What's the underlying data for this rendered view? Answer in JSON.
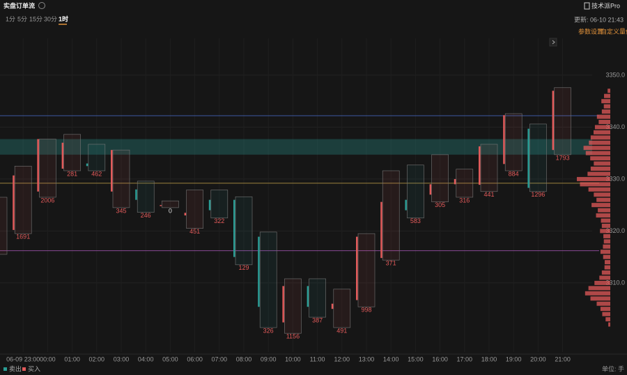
{
  "title": "实盘订单流",
  "tabs": [
    "1分",
    "5分",
    "15分",
    "30分",
    "1时"
  ],
  "active_tab": 4,
  "pro_button": "技术派Pro",
  "updated": "更新: 06-10 21:43",
  "links": [
    "参数设置",
    "自定义量价"
  ],
  "unit": "单位: 手",
  "chart_data": {
    "type": "candlestick",
    "categories": [
      null,
      "06-09 23:00",
      "00:00",
      "01:00",
      "02:00",
      "03:00",
      "04:00",
      "05:00",
      "06:00",
      "07:00",
      "08:00",
      "09:00",
      "10:00",
      "11:00",
      "12:00",
      "13:00",
      "14:00",
      "15:00",
      "16:00",
      "17:00",
      "18:00",
      "19:00",
      "20:00",
      "21:00"
    ],
    "open": [
      3318,
      3320.2,
      3327.6,
      3332,
      3333,
      3327.6,
      3328,
      3325,
      3323,
      3326,
      3326,
      3318.9,
      3302.4,
      3309.4,
      3305,
      3306.7,
      3314.8,
      3326,
      3327,
      3329,
      3328.9,
      3332.9,
      3339.7,
      3335.6
    ],
    "high": [
      3326.5,
      3332.5,
      3337.7,
      3338.6,
      3336.7,
      3335.6,
      3329.6,
      3325.8,
      3327.9,
      3327.9,
      3326.6,
      3319.8,
      3310.8,
      3310.8,
      3308.8,
      3319.5,
      3331.6,
      3332.7,
      3334.7,
      3331.9,
      3336.7,
      3342.6,
      3340.6,
      3347.6
    ],
    "low": [
      3315.5,
      3319.5,
      3326.5,
      3331.6,
      3331.6,
      3324.5,
      3323.6,
      3324.5,
      3320.5,
      3322.5,
      3313.5,
      3301.4,
      3300.3,
      3303.4,
      3301.4,
      3305.4,
      3314.4,
      3322.5,
      3325.6,
      3326.5,
      3327.6,
      3331.6,
      3327.6,
      3334.7
    ],
    "close": [
      3324,
      3330.7,
      3337.7,
      3337,
      3332.5,
      3335.6,
      3326,
      3325,
      3323.5,
      3324,
      3315,
      3305.4,
      3309.4,
      3305.4,
      3306,
      3318.9,
      3325.6,
      3324,
      3329,
      3330,
      3336.3,
      3342.3,
      3328.3,
      3347
    ],
    "delta": [
      null,
      1691,
      2006,
      281,
      462,
      345,
      246,
      0,
      451,
      322,
      129,
      326,
      1156,
      387,
      491,
      998,
      371,
      583,
      305,
      316,
      441,
      884,
      1296,
      1793
    ],
    "up_color": "#e35a5a",
    "down_color": "#2a9d95",
    "ylim": [
      3296.7,
      3357.1
    ],
    "yticks": [
      {
        "value": 3310,
        "label": "3310.0"
      },
      {
        "value": 3320,
        "label": "3320.0"
      },
      {
        "value": 3330,
        "label": "3330.0"
      },
      {
        "value": 3340,
        "label": "3340.0"
      },
      {
        "value": 3350,
        "label": "3350.0"
      }
    ],
    "grid": true,
    "levels": [
      {
        "value": 3342.2,
        "color": "#4a6fd0"
      },
      {
        "value": 3329.2,
        "color": "#c9a54a"
      },
      {
        "value": 3316.2,
        "color": "#b05ac0"
      }
    ],
    "zone": [
      3334.7,
      3337.7
    ],
    "profile_prices": [
      3347,
      3346,
      3345,
      3344,
      3343,
      3342,
      3341,
      3340,
      3339,
      3338,
      3337,
      3336,
      3335,
      3334,
      3333,
      3332,
      3331,
      3330,
      3329,
      3328,
      3327,
      3326,
      3325,
      3324,
      3323,
      3322,
      3321,
      3320,
      3319,
      3318,
      3317,
      3316,
      3315,
      3314,
      3313,
      3312,
      3311,
      3310,
      3309,
      3308,
      3307,
      3306,
      3305,
      3304,
      3303,
      3302
    ],
    "profile_volumes": [
      1200,
      2800,
      4000,
      2900,
      3800,
      6000,
      5200,
      6900,
      7500,
      8800,
      9600,
      12000,
      11000,
      9000,
      7400,
      8800,
      10200,
      15000,
      13600,
      9800,
      7400,
      6200,
      8400,
      5600,
      6400,
      4200,
      3800,
      4600,
      3100,
      2900,
      3300,
      4400,
      3200,
      2500,
      2600,
      3800,
      4900,
      7100,
      9800,
      11300,
      8900,
      6100,
      4400,
      3600,
      2100,
      900
    ],
    "legend": [
      {
        "name": "卖出",
        "color": "#2a9d95"
      },
      {
        "name": "买入",
        "color": "#e35a5a"
      }
    ]
  }
}
